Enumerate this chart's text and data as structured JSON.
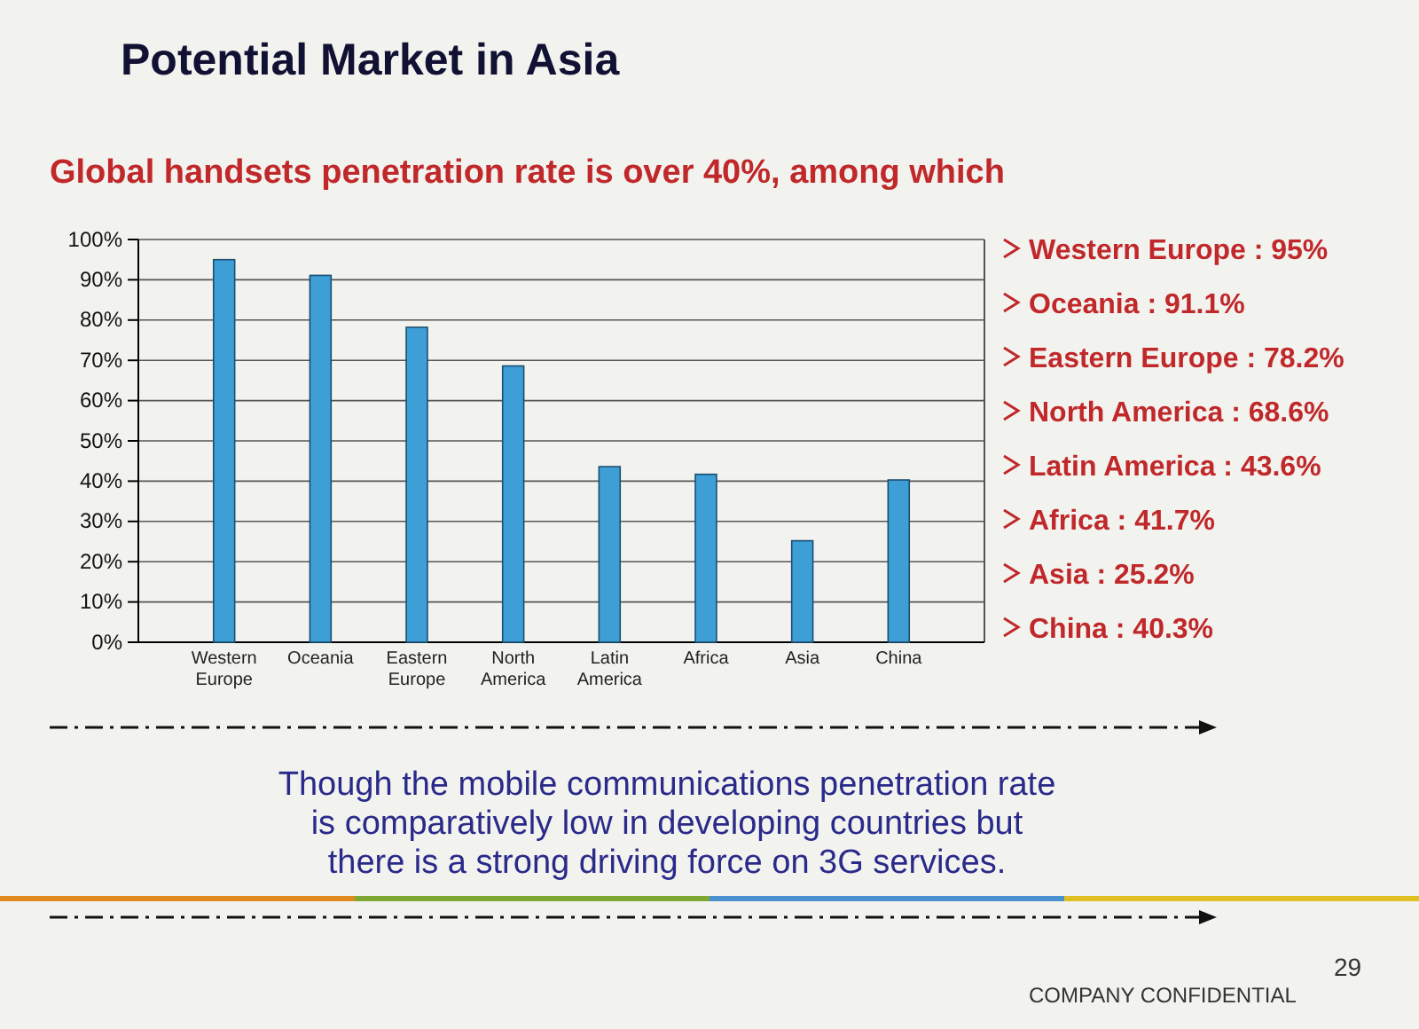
{
  "chart_data": {
    "type": "bar",
    "title": "Potential Market in Asia",
    "subtitle": "Global handsets penetration rate is over 40%, among which",
    "categories": [
      "Western Europe",
      "Oceania",
      "Eastern Europe",
      "North America",
      "Latin America",
      "Africa",
      "Asia",
      "China"
    ],
    "values": [
      95,
      91.1,
      78.2,
      68.6,
      43.6,
      41.7,
      25.2,
      40.3
    ],
    "color": "#3d9fd6",
    "ylim": [
      0,
      100
    ],
    "yticks": [
      {
        "value": 0,
        "label": "0%"
      },
      {
        "value": 10,
        "label": "10%"
      },
      {
        "value": 20,
        "label": "20%"
      },
      {
        "value": 30,
        "label": "30%"
      },
      {
        "value": 40,
        "label": "40%"
      },
      {
        "value": 50,
        "label": "50%"
      },
      {
        "value": 60,
        "label": "60%"
      },
      {
        "value": 70,
        "label": "70%"
      },
      {
        "value": 80,
        "label": "80%"
      },
      {
        "value": 90,
        "label": "90%"
      },
      {
        "value": 100,
        "label": "100%"
      }
    ],
    "grid": "y",
    "annotations": [
      "Western Europe : 95%",
      "Oceania : 91.1%",
      "Eastern Europe : 78.2%",
      "North America : 68.6%",
      "Latin America : 43.6%",
      "Africa : 41.7%",
      "Asia : 25.2%",
      "China : 40.3%",
      "Though  the mobile communications penetration rate is comparatively low in developing countries but there is a strong driving force on 3G services.",
      "COMPANY CONFIDENTIAL",
      "29"
    ]
  }
}
